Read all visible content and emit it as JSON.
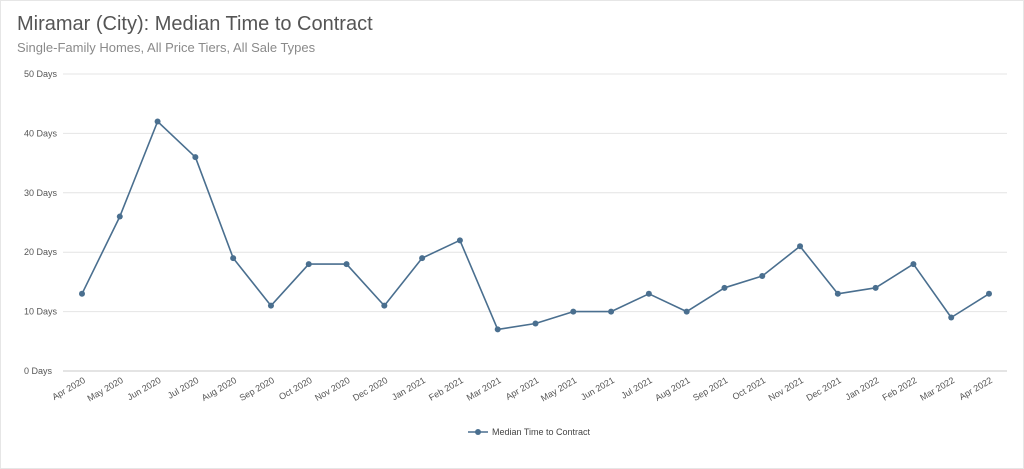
{
  "chart_data": {
    "type": "line",
    "title": "Miramar (City): Median Time to Contract",
    "subtitle": "Single-Family Homes, All Price Tiers, All Sale Types",
    "categories": [
      "Apr 2020",
      "May 2020",
      "Jun 2020",
      "Jul 2020",
      "Aug 2020",
      "Sep 2020",
      "Oct 2020",
      "Nov 2020",
      "Dec 2020",
      "Jan 2021",
      "Feb 2021",
      "Mar 2021",
      "Apr 2021",
      "May 2021",
      "Jun 2021",
      "Jul 2021",
      "Aug 2021",
      "Sep 2021",
      "Oct 2021",
      "Nov 2021",
      "Dec 2021",
      "Jan 2022",
      "Feb 2022",
      "Mar 2022",
      "Apr 2022"
    ],
    "series": [
      {
        "name": "Median Time to Contract",
        "values": [
          13,
          26,
          42,
          36,
          19,
          11,
          18,
          18,
          11,
          19,
          22,
          7,
          8,
          10,
          10,
          13,
          10,
          14,
          16,
          21,
          13,
          14,
          18,
          9,
          13
        ]
      }
    ],
    "y_ticks": [
      "0 Days",
      "10 Days",
      "20 Days",
      "30 Days",
      "40 Days",
      "50 Days"
    ],
    "ylim": [
      0,
      50
    ],
    "grid": true,
    "legend_position": "bottom-center",
    "line_color": "#4a6f8f"
  }
}
